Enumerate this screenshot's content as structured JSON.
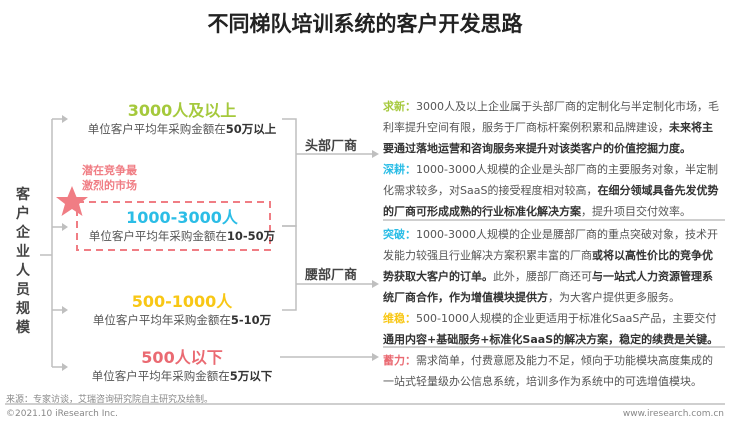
{
  "title": "不同梯队培训系统的客户开发思路",
  "left_label": "客户企业人员规模",
  "tiers": [
    {
      "heading": "3000人及以上",
      "sub_prefix": "单位客户平均年采购金额在",
      "sub_value": "50万以上",
      "color": "#a5c93c"
    },
    {
      "heading": "1000-3000人",
      "sub_prefix": "单位客户平均年采购金额在",
      "sub_value": "10-50万",
      "color": "#2bbde6"
    },
    {
      "heading": "500-1000人",
      "sub_prefix": "单位客户平均年采购金额在",
      "sub_value": "5-10万",
      "color": "#f8c715"
    },
    {
      "heading": "500人以下",
      "sub_prefix": "单位客户平均年采购金额在",
      "sub_value": "5万以下",
      "color": "#ea6a72"
    }
  ],
  "callout": {
    "line1": "潜在竞争最",
    "line2": "激烈的市场",
    "color": "#f07d84",
    "icon": "star-icon"
  },
  "vendors": [
    "头部厂商",
    "腰部厂商"
  ],
  "strategies": [
    {
      "key": "求新：",
      "color": "#a5c93c",
      "text": "3000人及以上企业属于头部厂商的定制化与半定制化市场，毛利率提升空间有限，服务于厂商标杆案例积累和品牌建设，",
      "bold": "未来将主要通过落地运营和咨询服务来提升对该类客户的价值挖掘力度。",
      "after": ""
    },
    {
      "key": "深耕：",
      "color": "#2bbde6",
      "text": "1000-3000人规模的企业是头部厂商的主要服务对象，半定制化需求较多，对SaaS的接受程度相对较高，",
      "bold": "在细分领域具备先发优势的厂商可形成成熟的行业标准化解决方案",
      "after": "，提升项目交付效率。"
    },
    {
      "key": "突破：",
      "color": "#2bbde6",
      "text": "1000-3000人规模的企业是腰部厂商的重点突破对象，技术开发能力较强且行业解决方案积累丰富的厂商",
      "bold": "或将以高性价比的竞争优势获取大客户的订单。",
      "after": "此外，腰部厂商还可",
      "bold2": "与一站式人力资源管理系统厂商合作，作为增值模块提供方",
      "after2": "，为大客户提供更多服务。"
    },
    {
      "key": "维稳：",
      "color": "#f8c715",
      "text": "500-1000人规模的企业更适用于标准化SaaS产品，主要交付",
      "bold": "通用内容+基础服务+标准化SaaS的解决方案，稳定的续费是关键。",
      "after": ""
    },
    {
      "key": "蓄力：",
      "color": "#ea6a72",
      "text": "需求简单，付费意愿及能力不足，倾向于功能模块高度集成的一站式轻量级办公信息系统，培训多作为系统中的可选增值模块。",
      "bold": "",
      "after": ""
    }
  ],
  "footer": {
    "source": "来源：专家访谈，艾瑞咨询研究院自主研究及绘制。",
    "copyright": "©2021.10 iResearch Inc.",
    "website": "www.iresearch.com.cn"
  }
}
